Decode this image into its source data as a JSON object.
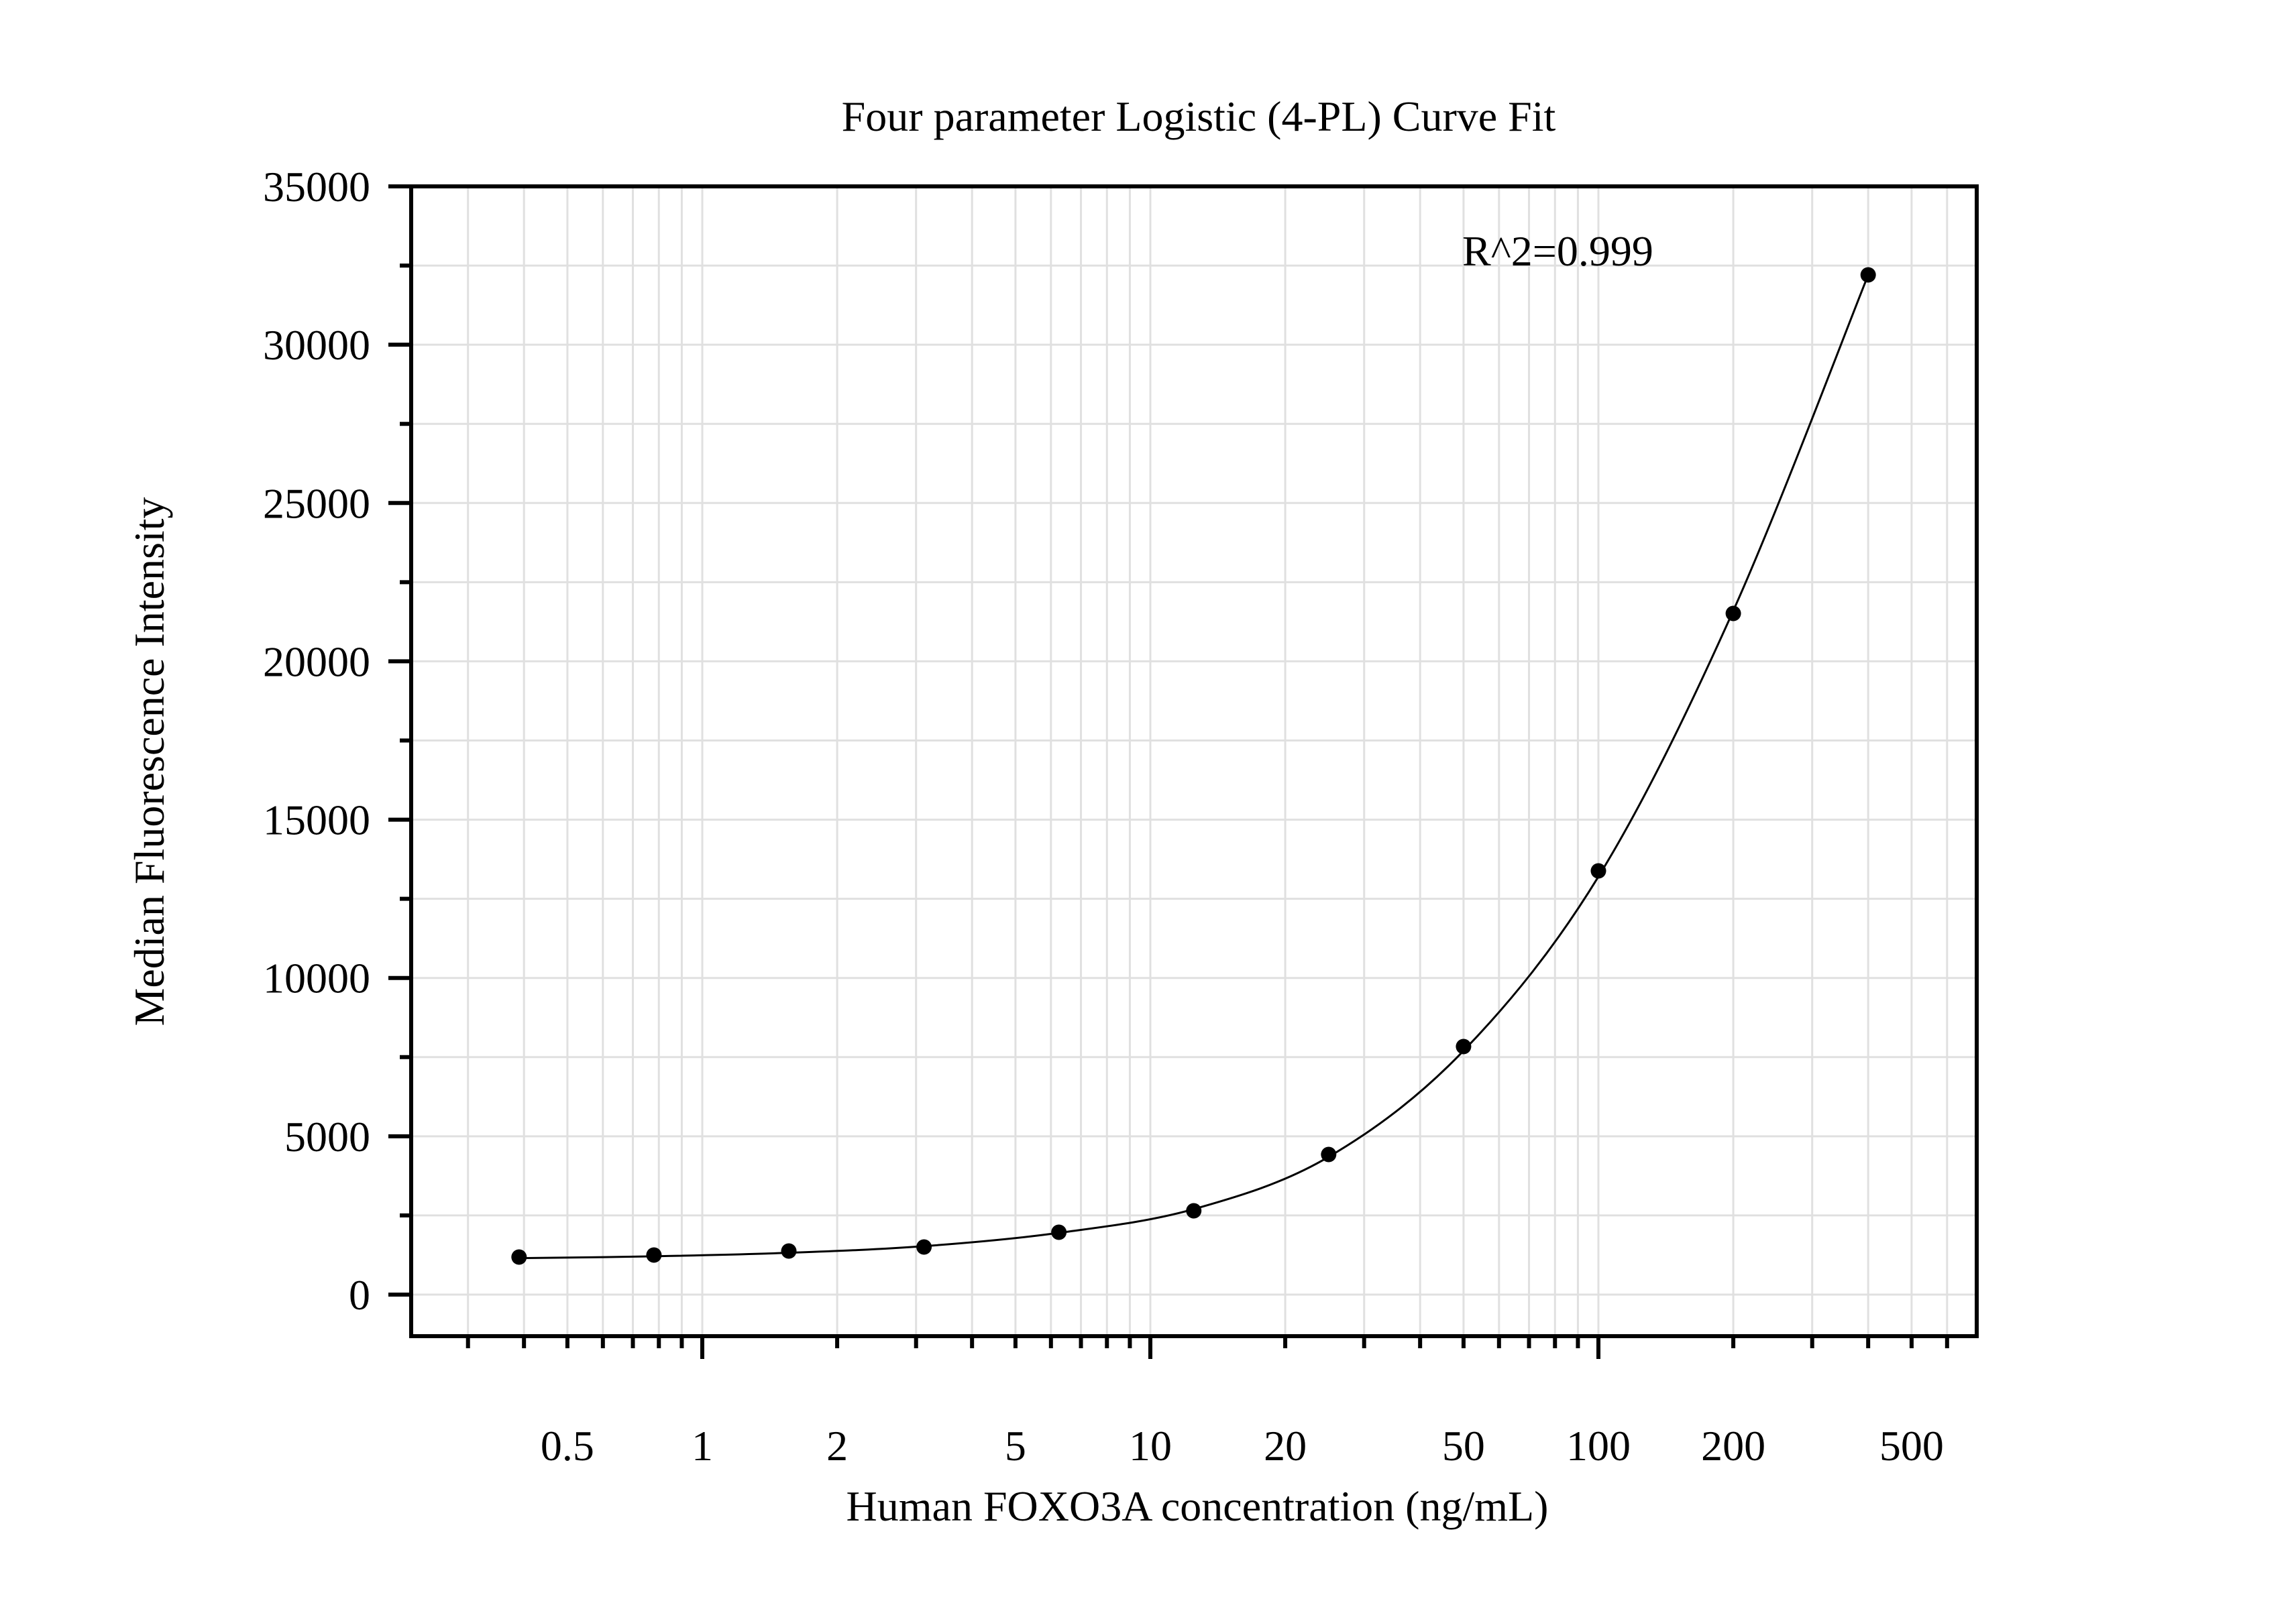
{
  "chart_data": {
    "type": "scatter",
    "title": "Four parameter Logistic (4-PL) Curve Fit",
    "xlabel": "Human FOXO3A concentration (ng/mL)",
    "ylabel": "Median Fluorescence Intensity",
    "xscale": "log",
    "xlim": [
      0.224,
      697
    ],
    "ylim": [
      -1300,
      35000
    ],
    "grid": true,
    "legend": null,
    "annotation": "R^2=0.999",
    "x_ticks": [
      0.5,
      1,
      2,
      5,
      10,
      20,
      50,
      100,
      200,
      500
    ],
    "x_tick_labels": [
      "0.5",
      "1",
      "2",
      "5",
      "10",
      "20",
      "50",
      "100",
      "200",
      "500"
    ],
    "y_ticks": [
      0,
      5000,
      10000,
      15000,
      20000,
      25000,
      30000,
      35000
    ],
    "y_tick_labels": [
      "0",
      "5000",
      "10000",
      "15000",
      "20000",
      "25000",
      "30000",
      "35000"
    ],
    "series": [
      {
        "name": "Standard points",
        "marker": "circle",
        "color": "#000000",
        "x": [
          0.39,
          0.78,
          1.56,
          3.125,
          6.25,
          12.5,
          25,
          50,
          100,
          200,
          400
        ],
        "y": [
          1186,
          1249,
          1376,
          1503,
          1969,
          2647,
          4425,
          7834,
          13381,
          21512,
          32204
        ]
      },
      {
        "name": "4-PL fit",
        "type": "line",
        "color": "#000000",
        "x": [
          0.39,
          0.78,
          1.56,
          3.125,
          6.25,
          12.5,
          25,
          50,
          100,
          200,
          400
        ],
        "y": [
          1150,
          1210,
          1320,
          1530,
          1950,
          2700,
          4350,
          7700,
          13200,
          21600,
          32200
        ]
      }
    ]
  }
}
